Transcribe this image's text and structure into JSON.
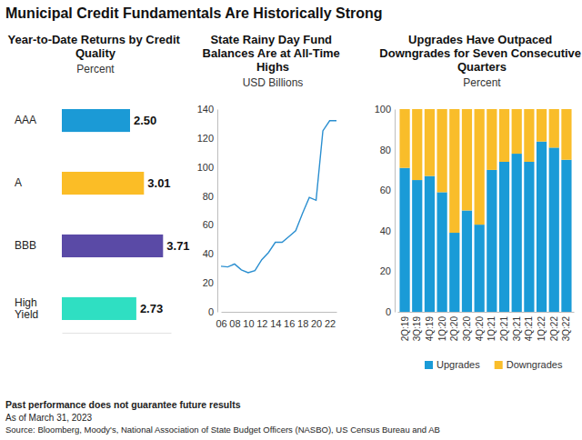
{
  "title": "Municipal Credit Fundamentals Are Historically Strong",
  "notes": [
    "Past performance does not guarantee future results",
    "As of March 31, 2023",
    "Source: Bloomberg, Moody's, National Association of State Budget Officers (NASBO), US Census Bureau and AB"
  ],
  "chart_data": [
    {
      "type": "bar",
      "orientation": "horizontal",
      "title": "Year-to-Date Returns by Credit Quality",
      "subtitle": "Percent",
      "categories": [
        "AAA",
        "A",
        "BBB",
        "High Yield"
      ],
      "values": [
        2.5,
        3.01,
        3.71,
        2.73
      ],
      "value_labels": [
        "2.50",
        "3.01",
        "3.71",
        "2.73"
      ],
      "colors": [
        "#1b9ad6",
        "#fbbd26",
        "#5a4aa6",
        "#2fdfc2"
      ],
      "xlim": [
        0,
        4
      ],
      "data_labels": true,
      "tick_labels": "y"
    },
    {
      "type": "line",
      "title": "State Rainy Day Fund Balances Are at All-Time Highs",
      "subtitle": "USD Billions",
      "x": [
        2006,
        2007,
        2008,
        2009,
        2010,
        2011,
        2012,
        2013,
        2014,
        2015,
        2016,
        2017,
        2018,
        2019,
        2020,
        2021,
        2022,
        2023
      ],
      "values": [
        31.5,
        31,
        33,
        29,
        27,
        28.5,
        36,
        41,
        48,
        48,
        52,
        56,
        68,
        79,
        77,
        125,
        132,
        132
      ],
      "color": "#2b8fd0",
      "xlim": [
        2006,
        2023
      ],
      "xticks": [
        {
          "value": 2006,
          "label": "06"
        },
        {
          "value": 2008,
          "label": "08"
        },
        {
          "value": 2010,
          "label": "10"
        },
        {
          "value": 2012,
          "label": "12"
        },
        {
          "value": 2014,
          "label": "14"
        },
        {
          "value": 2016,
          "label": "16"
        },
        {
          "value": 2018,
          "label": "18"
        },
        {
          "value": 2020,
          "label": "20"
        },
        {
          "value": 2022,
          "label": "22"
        }
      ],
      "ylim": [
        0,
        140
      ],
      "yticks": [
        0,
        20,
        40,
        60,
        80,
        100,
        120,
        140
      ],
      "grid": false
    },
    {
      "type": "bar",
      "stacked": true,
      "title": "Upgrades Have Outpaced Downgrades for Seven Consecutive Quarters",
      "subtitle": "Percent",
      "categories": [
        "2Q:19",
        "3Q:19",
        "4Q:19",
        "1Q:20",
        "2Q:20",
        "3Q:20",
        "4Q:20",
        "1Q:21",
        "2Q:21",
        "3Q:21",
        "4Q:21",
        "1Q:22",
        "2Q:22",
        "3Q:22"
      ],
      "series": [
        {
          "name": "Upgrades",
          "color": "#1a9bd7",
          "values": [
            71,
            65,
            67,
            59,
            39,
            50,
            43,
            70,
            74,
            78,
            74,
            84,
            81,
            75
          ]
        },
        {
          "name": "Downgrades",
          "color": "#f9bd2a",
          "values": [
            29,
            35,
            33,
            41,
            61,
            50,
            57,
            30,
            26,
            22,
            26,
            16,
            19,
            25
          ]
        }
      ],
      "ylim": [
        0,
        100
      ],
      "yticks": [
        0,
        20,
        40,
        60,
        80,
        100
      ],
      "grid": false,
      "legend": "bottom"
    }
  ]
}
